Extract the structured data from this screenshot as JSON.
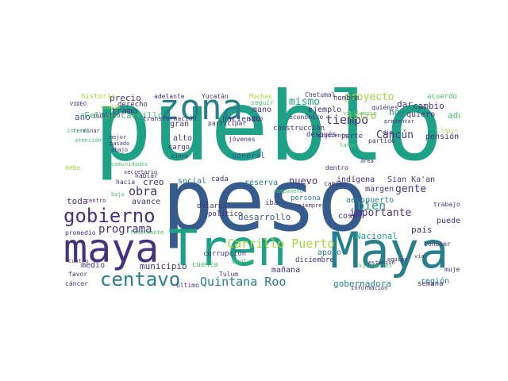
{
  "palette": {
    "dark-purple": "#46327e",
    "navy": "#365c8d",
    "teal": "#277f8e",
    "green-teal": "#1fa187",
    "green": "#4ac16d",
    "yellow-green": "#a0da39",
    "yellow": "#c8d93a"
  },
  "words": [
    "pueblo",
    "peso",
    "Tren",
    "Maya",
    "maya",
    "zona",
    "gobierno",
    "centavo",
    "Quintana Roo",
    "programa",
    "obra",
    "Carrillo Puerto",
    "desarrollo",
    "mismo",
    "proyecto",
    "tiempo",
    "bien",
    "gente",
    "importante",
    "Cancún",
    "nuevo",
    "reserva",
    "Felipe Carrillo",
    "adultos mayores",
    "gobernadora",
    "litro",
    "cambio",
    "precio",
    "tramo",
    "año",
    "municipio",
    "toda",
    "creo",
    "avance",
    "general",
    "indígena",
    "Sian Ka'an",
    "país",
    "Nacional",
    "apoyo",
    "mañana",
    "región",
    "aeropuerto",
    "pensión",
    "hoy",
    "dar",
    "quiero",
    "pueden",
    "semana",
    "margen",
    "cosa",
    "historia",
    "derecho",
    "público",
    "mano",
    "gran",
    "alto",
    "cargo",
    "haciendo",
    "social",
    "cada",
    "iba",
    "persona",
    "político",
    "cuenta",
    "medio",
    "corrupción",
    "mujeres",
    "dólares",
    "ejemplo",
    "hombre",
    "parte",
    "después",
    "construcción",
    "económico",
    "sólo",
    "seguir",
    "Muchas",
    "jóvenes",
    "Yucatán",
    "adelante",
    "Chetumal",
    "acuerdo",
    "quiénes",
    "partido",
    "dentro",
    "camino",
    "trabajo",
    "conocer",
    "diciembre",
    "Tulum",
    "empleo",
    "último",
    "cáncer",
    "favor",
    "cuatro",
    "promedio",
    "totalmente",
    "comunidades",
    "secretario",
    "hacia",
    "hablar",
    "centro",
    "bajo",
    "cinco",
    "abajo",
    "pasado",
    "mejor",
    "participar",
    "transformación",
    "terminar",
    "debe",
    "VIDEO",
    "ciudad",
    "atención",
    "interés",
    "vía",
    "estación",
    "kilómetros",
    "información",
    "equipo",
    "área",
    "siguiente",
    "presentar",
    "dio",
    "siempre",
    "tarde",
    "vigilancia",
    "compañero",
    "Chico"
  ]
}
